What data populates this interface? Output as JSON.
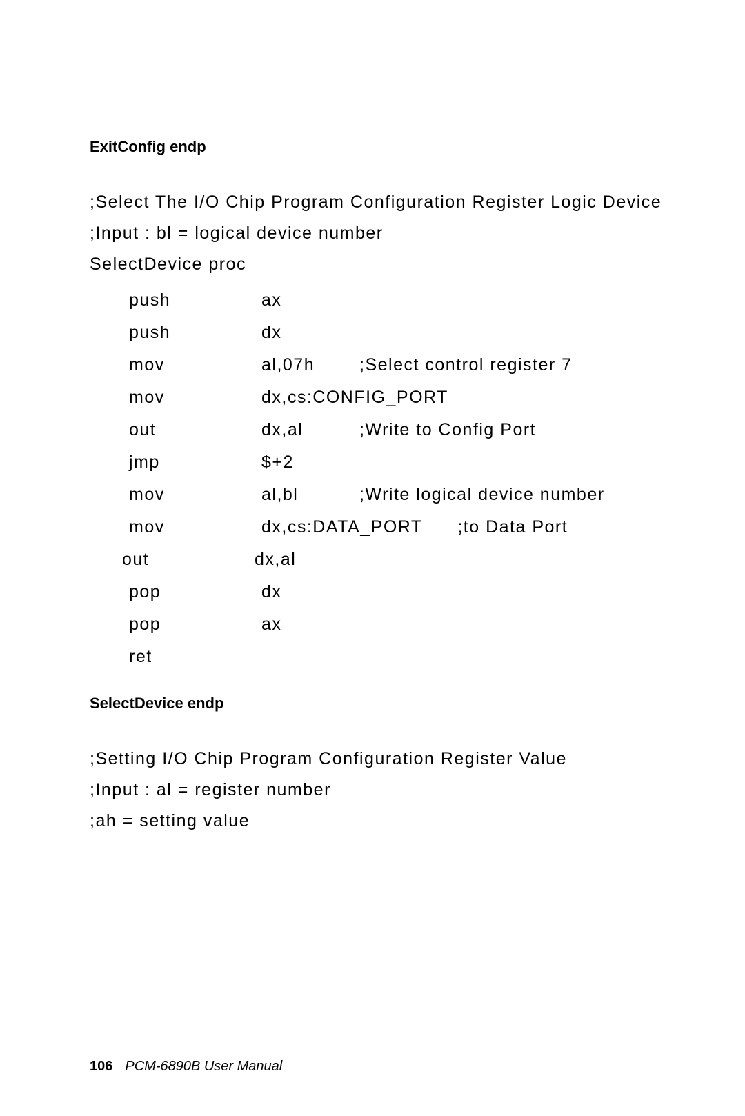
{
  "header1": "ExitConfig endp",
  "para1": ";Select The I/O Chip Program Configuration Register Logic Device",
  "para2": ";Input : bl = logical device number",
  "para3": "SelectDevice proc",
  "code": [
    {
      "op": "push",
      "arg": "ax",
      "cmt": ""
    },
    {
      "op": "push",
      "arg": "dx",
      "cmt": ""
    },
    {
      "op": "mov",
      "arg": "al,07h",
      "cmt": ";Select control register 7"
    },
    {
      "op": "mov",
      "arg": "dx,cs:CONFIG_PORT",
      "cmt": ""
    },
    {
      "op": "out",
      "arg": "dx,al",
      "cmt": ";Write to Config Port"
    },
    {
      "op": "jmp",
      "arg": "$+2",
      "cmt": ""
    },
    {
      "op": "mov",
      "arg": "al,bl",
      "cmt": ";Write logical device number"
    },
    {
      "op": "mov",
      "arg": "dx,cs:DATA_PORT",
      "cmt": ";to Data Port"
    },
    {
      "op": "out",
      "arg": "dx,al",
      "cmt": "",
      "shift": true
    },
    {
      "op": "pop",
      "arg": "dx",
      "cmt": ""
    },
    {
      "op": "pop",
      "arg": "ax",
      "cmt": ""
    },
    {
      "op": "ret",
      "arg": "",
      "cmt": ""
    }
  ],
  "header2": "SelectDevice endp",
  "para4": ";Setting I/O Chip Program Configuration Register Value",
  "para5": ";Input : al = register number",
  "para6": ";ah = setting value",
  "footer_page": "106",
  "footer_text": "PCM-6890B  User Manual"
}
